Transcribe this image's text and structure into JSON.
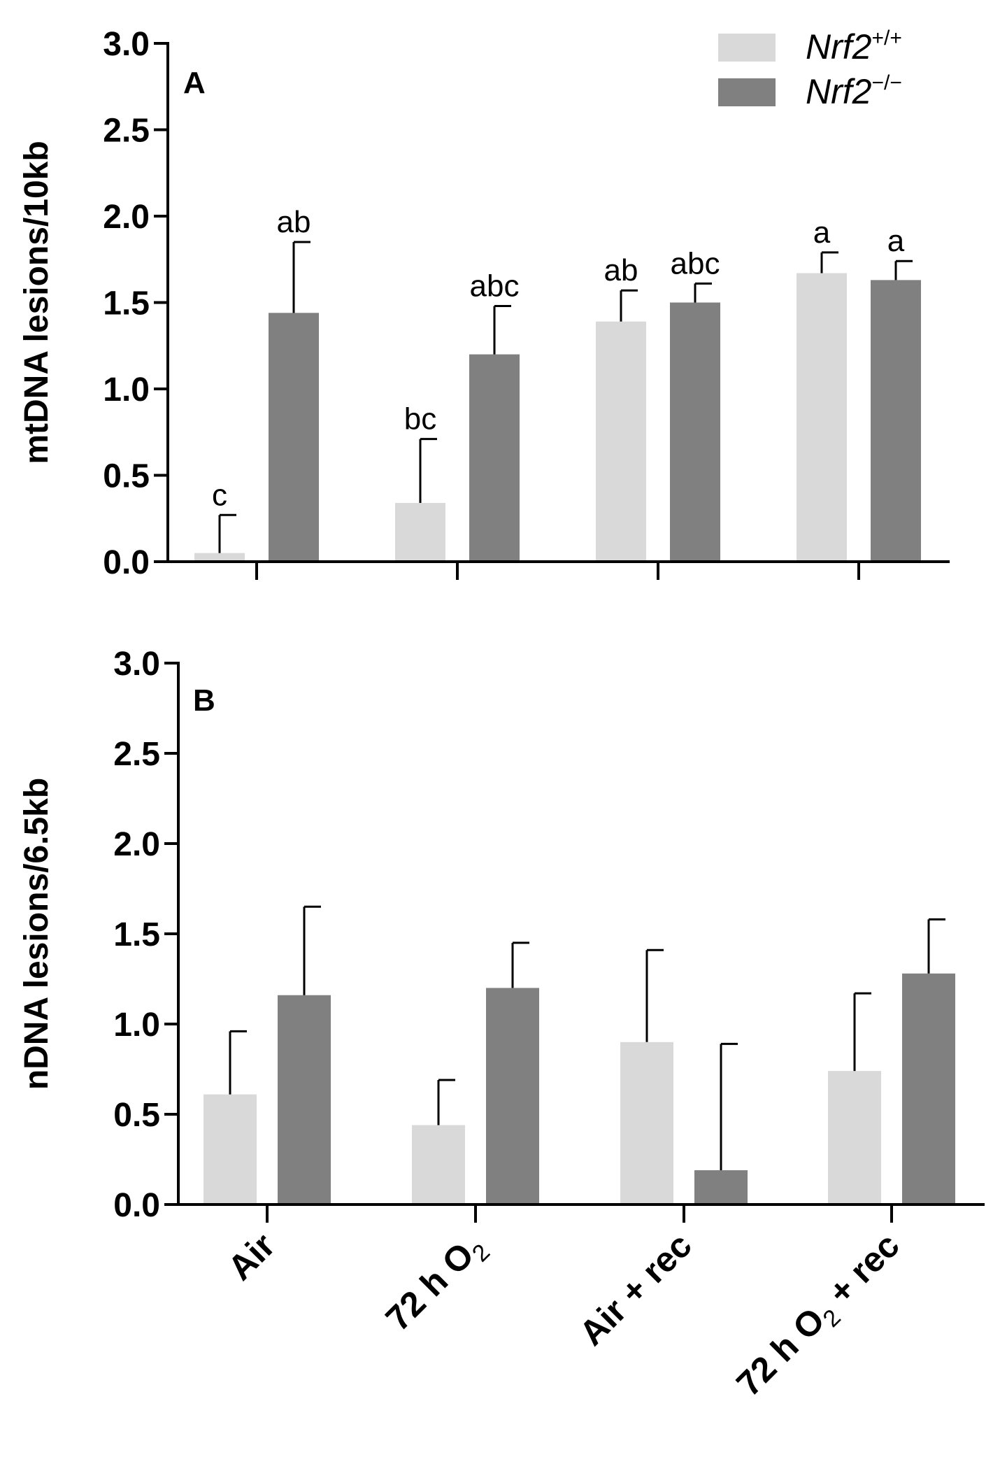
{
  "chart_data": [
    {
      "type": "bar",
      "panel_label": "A",
      "ylabel": "mtDNA lesions/10kb",
      "xlabel": "",
      "ylim": [
        0,
        3.0
      ],
      "yticks": [
        "0.0",
        "0.5",
        "1.0",
        "1.5",
        "2.0",
        "2.5",
        "3.0"
      ],
      "categories": [
        "Air",
        "72 h O2",
        "Air + rec",
        "72 h O2 + rec"
      ],
      "series": [
        {
          "name": "Nrf2+/+",
          "color": "#d9d9d9",
          "values": [
            0.05,
            0.34,
            1.39,
            1.67
          ],
          "error": [
            0.22,
            0.37,
            0.18,
            0.12
          ],
          "sig_labels": [
            "c",
            "bc",
            "ab",
            "a"
          ]
        },
        {
          "name": "Nrf2−/−",
          "color": "#808080",
          "values": [
            1.44,
            1.2,
            1.5,
            1.63
          ],
          "error": [
            0.41,
            0.28,
            0.11,
            0.11
          ],
          "sig_labels": [
            "ab",
            "abc",
            "abc",
            "a"
          ]
        }
      ],
      "legend": {
        "placement": "top-right",
        "entries": [
          {
            "base": "Nrf2",
            "sup": "+/+",
            "color": "#d9d9d9"
          },
          {
            "base": "Nrf2",
            "sup": "−/−",
            "color": "#808080"
          }
        ]
      }
    },
    {
      "type": "bar",
      "panel_label": "B",
      "ylabel": "nDNA lesions/6.5kb",
      "xlabel": "",
      "ylim": [
        0,
        3.0
      ],
      "yticks": [
        "0.0",
        "0.5",
        "1.0",
        "1.5",
        "2.0",
        "2.5",
        "3.0"
      ],
      "categories": [
        "Air",
        "72 h O2",
        "Air + rec",
        "72 h O2 + rec"
      ],
      "category_labels": [
        {
          "parts": [
            "Air"
          ]
        },
        {
          "parts": [
            "72 h O",
            "2"
          ]
        },
        {
          "parts": [
            "Air + rec"
          ]
        },
        {
          "parts": [
            "72 h O",
            "2",
            " + rec"
          ]
        }
      ],
      "series": [
        {
          "name": "Nrf2+/+",
          "color": "#d9d9d9",
          "values": [
            0.61,
            0.44,
            0.9,
            0.74
          ],
          "error": [
            0.35,
            0.25,
            0.51,
            0.43
          ]
        },
        {
          "name": "Nrf2−/−",
          "color": "#808080",
          "values": [
            1.16,
            1.2,
            0.19,
            1.28
          ],
          "error": [
            0.49,
            0.25,
            0.7,
            0.3
          ]
        }
      ]
    }
  ]
}
